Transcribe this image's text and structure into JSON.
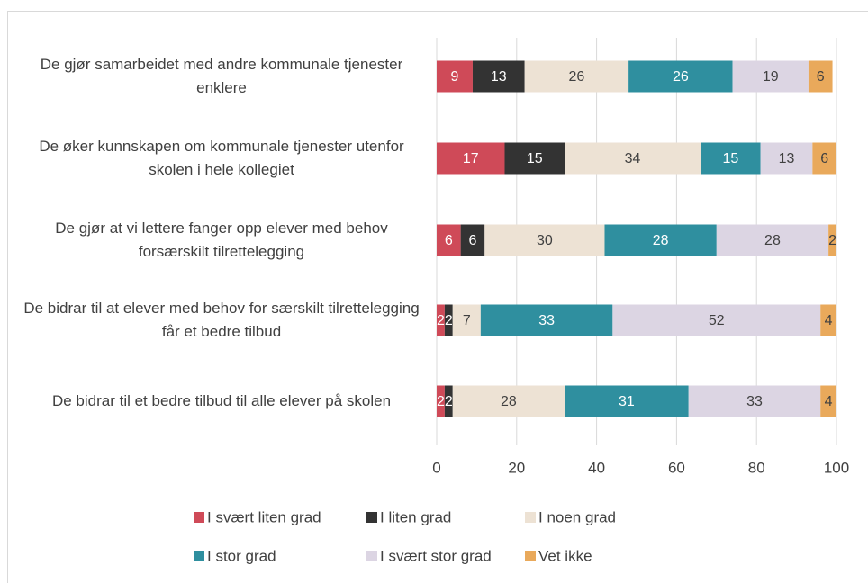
{
  "chart_data": {
    "type": "stacked_bar_horizontal",
    "categories": [
      "De gjør samarbeidet med andre kommunale tjenester enklere",
      "De øker kunnskapen om kommunale tjenester utenfor skolen i hele kollegiet",
      "De gjør at vi lettere fanger opp elever med behov forsærskilt tilrettelegging",
      "De bidrar til at elever med behov for særskilt tilrettelegging får et bedre tilbud",
      "De bidrar til et bedre tilbud til alle elever på skolen"
    ],
    "series": [
      {
        "name": "I svært liten grad",
        "color": "#cf4a58",
        "values": [
          9,
          17,
          6,
          2,
          2
        ]
      },
      {
        "name": "I liten grad",
        "color": "#333333",
        "values": [
          13,
          15,
          6,
          2,
          2
        ]
      },
      {
        "name": "I noen grad",
        "color": "#ede2d4",
        "values": [
          26,
          34,
          30,
          7,
          28
        ]
      },
      {
        "name": "I stor grad",
        "color": "#2f8f9f",
        "values": [
          26,
          15,
          28,
          33,
          31
        ]
      },
      {
        "name": "I svært stor grad",
        "color": "#dcd5e3",
        "values": [
          19,
          13,
          28,
          52,
          33
        ]
      },
      {
        "name": "Vet ikke",
        "color": "#e9a95b",
        "values": [
          6,
          6,
          2,
          4,
          4
        ]
      }
    ],
    "xlim": [
      0,
      100
    ],
    "xticks": [
      0,
      20,
      40,
      60,
      80,
      100
    ],
    "grid": true
  }
}
